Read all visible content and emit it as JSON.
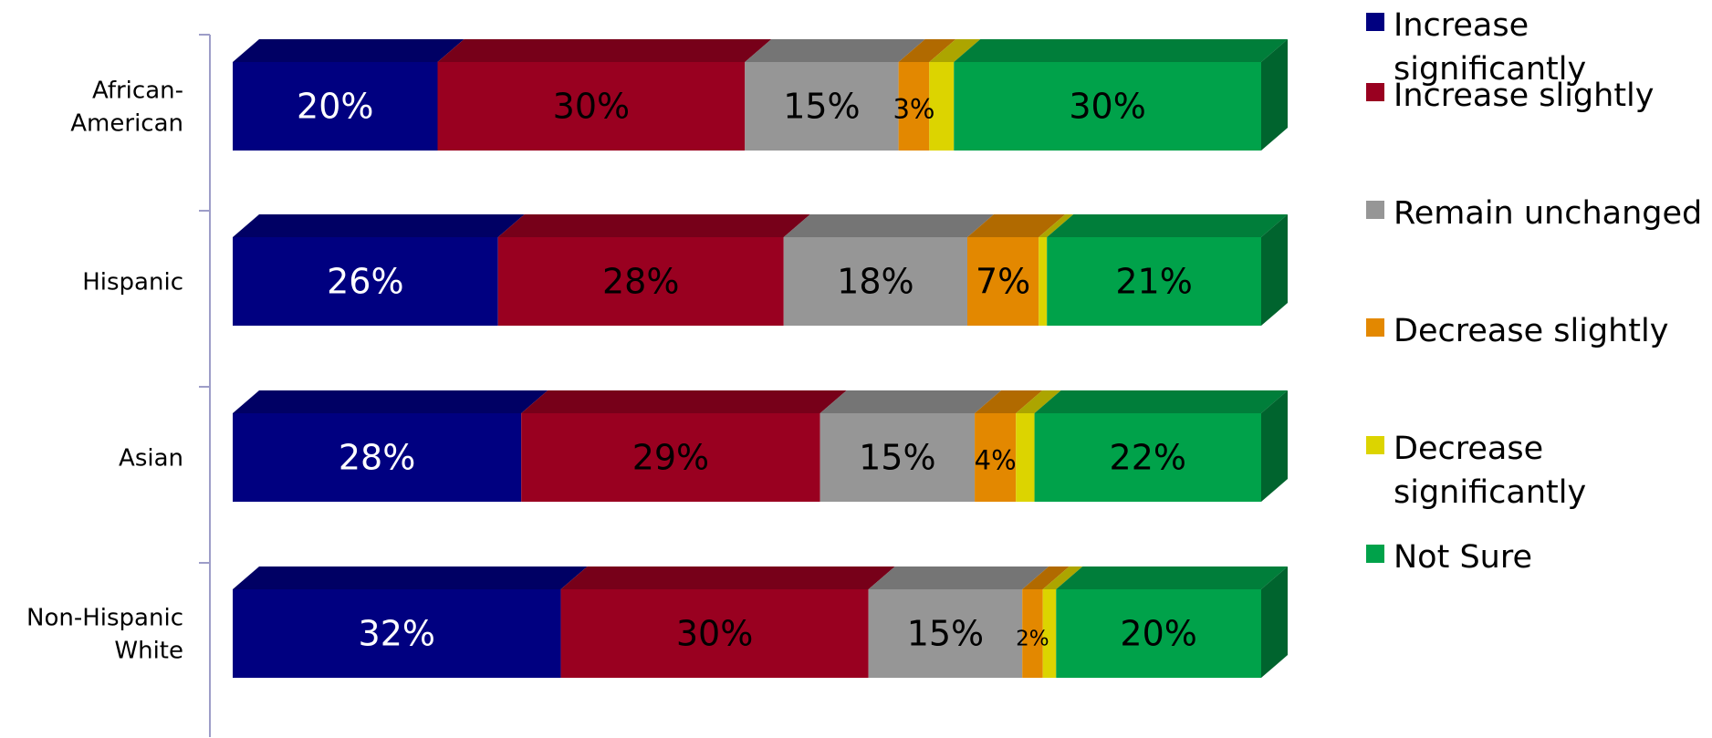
{
  "chart_data": {
    "type": "bar",
    "orientation": "horizontal",
    "stacked": true,
    "percent_scale": true,
    "three_d": true,
    "categories": [
      "African-American",
      "Hispanic",
      "Asian",
      "Non-Hispanic White"
    ],
    "category_lines": [
      [
        "African-",
        "American"
      ],
      [
        "Hispanic"
      ],
      [
        "Asian"
      ],
      [
        "Non-Hispanic",
        "White"
      ]
    ],
    "series": [
      {
        "name": "Increase significantly",
        "name_lines": [
          "Increase",
          "significantly"
        ],
        "color": "#000080",
        "label_color": "#ffffff",
        "values": [
          20,
          26,
          28,
          32
        ],
        "labels": [
          "20%",
          "26%",
          "28%",
          "32%"
        ]
      },
      {
        "name": "Increase slightly",
        "name_lines": [
          "Increase slightly"
        ],
        "color": "#990020",
        "label_color": "#000000",
        "values": [
          30,
          28,
          29,
          30
        ],
        "labels": [
          "30%",
          "28%",
          "29%",
          "30%"
        ]
      },
      {
        "name": "Remain unchanged",
        "name_lines": [
          "Remain unchanged"
        ],
        "color": "#969696",
        "label_color": "#000000",
        "values": [
          15,
          18,
          15,
          15
        ],
        "labels": [
          "15%",
          "18%",
          "15%",
          "15%"
        ]
      },
      {
        "name": "Decrease slightly",
        "name_lines": [
          "Decrease slightly"
        ],
        "color": "#e38800",
        "label_color": "#000000",
        "values": [
          3,
          7,
          4,
          2
        ],
        "labels": [
          "3%",
          "7%",
          "4%",
          "2%"
        ]
      },
      {
        "name": "Decrease significantly",
        "name_lines": [
          "Decrease",
          "significantly"
        ],
        "color": "#dcd400",
        "label_color": "#000000",
        "values": [
          2.4,
          0.8,
          1.8,
          1.3
        ],
        "labels": [
          "",
          "",
          "",
          ""
        ]
      },
      {
        "name": "Not Sure",
        "name_lines": [
          "Not Sure"
        ],
        "color": "#00a24a",
        "label_color": "#000000",
        "values": [
          30,
          21,
          22,
          20
        ],
        "labels": [
          "30%",
          "21%",
          "22%",
          "20%"
        ]
      }
    ],
    "legend_position": "right",
    "grid": false,
    "axis_color": "#9d9dc8"
  }
}
